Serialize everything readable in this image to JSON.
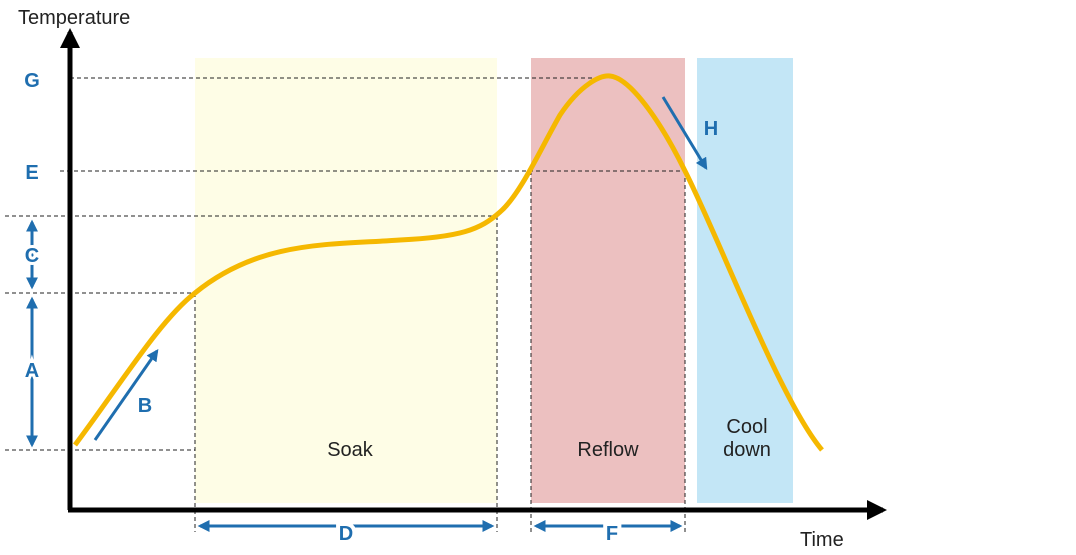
{
  "axes": {
    "y_label": "Temperature",
    "x_label": "Time"
  },
  "levels": {
    "g": "G",
    "e": "E",
    "c": "C",
    "a": "A"
  },
  "rates": {
    "b": "B",
    "h": "H"
  },
  "durations": {
    "d": "D",
    "f": "F"
  },
  "zones": {
    "soak": "Soak",
    "reflow": "Reflow",
    "cool_down": [
      "Cool",
      "down"
    ]
  }
}
